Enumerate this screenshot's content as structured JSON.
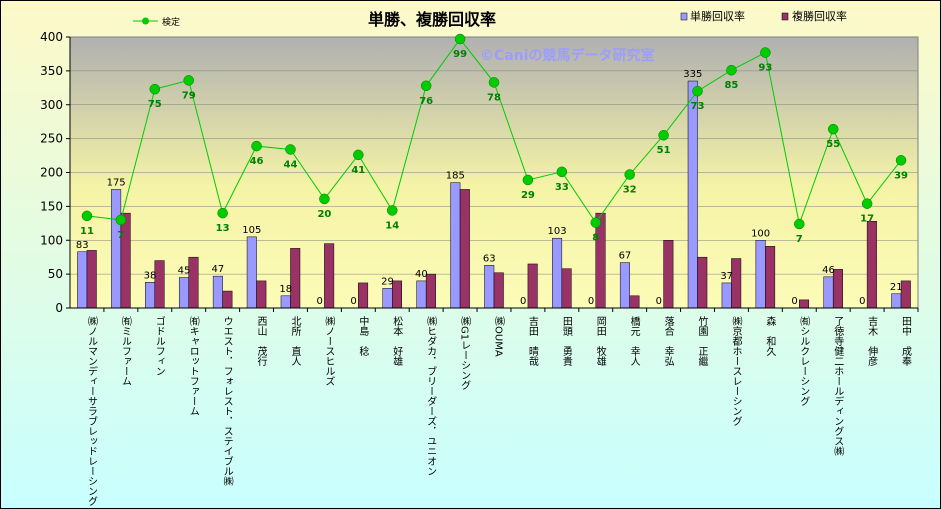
{
  "chart_data": {
    "type": "bar",
    "title": "単勝、複勝回収率",
    "watermark": "©Caniの競馬データ研究室",
    "categories": [
      "㈱ノルマンディーサラブレッドレーシング",
      "㈲ミルファーム",
      "ゴドルフィン",
      "㈲キャロットファーム",
      "ウエスト．フォレスト．ステイブル㈱",
      "西山　茂行",
      "北所　直人",
      "㈱ノースヒルズ",
      "中島　稔",
      "松本　好雄",
      "㈱ヒダカ．ブリーダーズ．ユニオン",
      "㈱G1レーシング",
      "㈱OUMA",
      "吉田　晴哉",
      "田頭　勇貴",
      "岡田　牧雄",
      "橋元　幸人",
      "落合　幸弘",
      "竹園　正繼",
      "㈱京都ホースレーシング",
      "森　和久",
      "㈲シルクレーシング",
      "了徳寺健二ホールディングス㈱",
      "吉木　伸彦",
      "田中　成奉"
    ],
    "series": [
      {
        "name": "単勝回収率",
        "type": "bar",
        "color": "#9999ff",
        "labels": true,
        "values": [
          83,
          175,
          38,
          45,
          47,
          105,
          18,
          0,
          0,
          29,
          40,
          185,
          63,
          0,
          103,
          0,
          67,
          0,
          335,
          37,
          100,
          0,
          46,
          0,
          21
        ]
      },
      {
        "name": "複勝回収率",
        "type": "bar",
        "color": "#993366",
        "labels": false,
        "values": [
          85,
          140,
          70,
          75,
          25,
          40,
          88,
          95,
          37,
          40,
          50,
          175,
          52,
          65,
          58,
          140,
          18,
          100,
          75,
          73,
          91,
          12,
          57,
          128,
          40
        ]
      },
      {
        "name": "検定",
        "type": "line",
        "color": "#00cc00",
        "labels": true,
        "axis": "left",
        "values": [
          136,
          130,
          323,
          336,
          140,
          239,
          234,
          161,
          226,
          144,
          328,
          397,
          333,
          189,
          201,
          126,
          197,
          255,
          320,
          351,
          377,
          124,
          264,
          154,
          218
        ],
        "label_values": [
          11,
          7,
          75,
          79,
          13,
          46,
          44,
          20,
          41,
          14,
          76,
          99,
          78,
          29,
          33,
          8,
          32,
          51,
          73,
          85,
          93,
          7,
          55,
          17,
          39
        ]
      }
    ],
    "ylim": [
      0,
      400
    ],
    "yticks": [
      0,
      50,
      100,
      150,
      200,
      250,
      300,
      350,
      400
    ],
    "grid": true,
    "legend_placement": "top"
  }
}
